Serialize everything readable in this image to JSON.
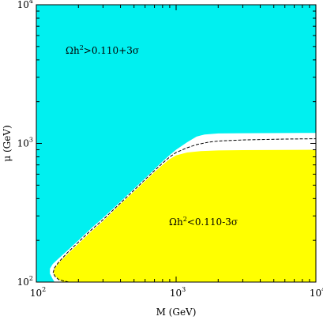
{
  "chart_data": {
    "type": "area",
    "xlabel": "M (GeV)",
    "ylabel": "μ (GeV)",
    "xscale": "log",
    "yscale": "log",
    "xlim": [
      100,
      10000
    ],
    "ylim": [
      100,
      10000
    ],
    "x_ticks": [
      {
        "base": "10",
        "exp": "2",
        "value": 100
      },
      {
        "base": "10",
        "exp": "3",
        "value": 1000
      },
      {
        "base": "10",
        "exp": "4",
        "value": 10000
      }
    ],
    "y_ticks": [
      {
        "base": "10",
        "exp": "2",
        "value": 100
      },
      {
        "base": "10",
        "exp": "3",
        "value": 1000
      },
      {
        "base": "10",
        "exp": "4",
        "value": 10000
      }
    ],
    "colors": {
      "upper_region": "#00f0f0",
      "lower_region": "#ffff00",
      "allowed_band": "#ffffff",
      "contour": "#000000"
    },
    "regions": [
      {
        "name": "upper",
        "label": "Ωh²>0.110+3σ",
        "label_parts": {
          "pre": "Ωh",
          "sup": "2",
          "post": ">0.110+3σ"
        },
        "fill": "#00f0f0"
      },
      {
        "name": "lower",
        "label": "Ωh²<0.110-3σ",
        "label_parts": {
          "pre": "Ωh",
          "sup": "2",
          "post": "<0.110-3σ"
        },
        "fill": "#ffff00",
        "boundary": [
          [
            155,
            100
          ],
          [
            145,
            104
          ],
          [
            136,
            111
          ],
          [
            133,
            118
          ],
          [
            136,
            127
          ],
          [
            145,
            138
          ],
          [
            168,
            160
          ],
          [
            200,
            189
          ],
          [
            250,
            234
          ],
          [
            300,
            275
          ],
          [
            400,
            365
          ],
          [
            500,
            450
          ],
          [
            600,
            535
          ],
          [
            700,
            620
          ],
          [
            800,
            700
          ],
          [
            900,
            770
          ],
          [
            1000,
            820
          ],
          [
            1200,
            860
          ],
          [
            1500,
            880
          ],
          [
            2000,
            890
          ],
          [
            3000,
            895
          ],
          [
            10000,
            900
          ]
        ]
      }
    ],
    "allowed_band": {
      "upper_edge": [
        [
          135,
          100
        ],
        [
          131,
          105
        ],
        [
          125,
          115
        ],
        [
          125,
          125
        ],
        [
          131,
          135
        ],
        [
          142,
          146
        ],
        [
          168,
          170
        ],
        [
          200,
          200
        ],
        [
          250,
          247
        ],
        [
          300,
          290
        ],
        [
          400,
          380
        ],
        [
          500,
          470
        ],
        [
          600,
          560
        ],
        [
          700,
          650
        ],
        [
          800,
          740
        ],
        [
          900,
          825
        ],
        [
          1000,
          900
        ],
        [
          1200,
          1020
        ],
        [
          1400,
          1120
        ],
        [
          1600,
          1160
        ],
        [
          2000,
          1180
        ],
        [
          3000,
          1185
        ],
        [
          10000,
          1190
        ]
      ]
    },
    "contour": {
      "style": "dashed",
      "points": [
        [
          170,
          100
        ],
        [
          145,
          104
        ],
        [
          136,
          110
        ],
        [
          132,
          117
        ],
        [
          135,
          127
        ],
        [
          145,
          140
        ],
        [
          168,
          164
        ],
        [
          200,
          194
        ],
        [
          250,
          240
        ],
        [
          300,
          282
        ],
        [
          400,
          372
        ],
        [
          500,
          460
        ],
        [
          600,
          548
        ],
        [
          700,
          636
        ],
        [
          800,
          720
        ],
        [
          900,
          798
        ],
        [
          1000,
          860
        ],
        [
          1200,
          930
        ],
        [
          1400,
          980
        ],
        [
          1700,
          1020
        ],
        [
          2000,
          1040
        ],
        [
          3000,
          1060
        ],
        [
          6000,
          1075
        ],
        [
          10000,
          1080
        ]
      ]
    }
  }
}
